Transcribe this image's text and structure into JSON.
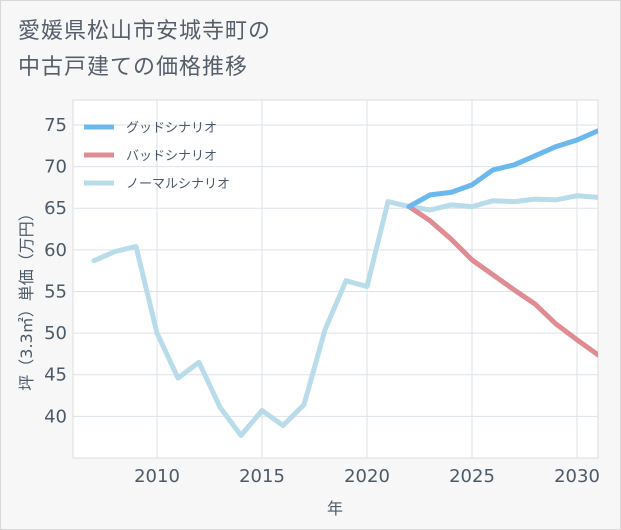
{
  "title": {
    "line1": "愛媛県松山市安城寺町の",
    "line2": "中古戸建ての価格推移"
  },
  "chart_data": {
    "type": "line",
    "xlabel": "年",
    "ylabel": "坪（3.3㎡）単価（万円）",
    "xlim": [
      2006,
      2031
    ],
    "ylim": [
      35,
      78
    ],
    "x_ticks": [
      2010,
      2015,
      2020,
      2025,
      2030
    ],
    "y_ticks": [
      40,
      45,
      50,
      55,
      60,
      65,
      70,
      75
    ],
    "legend_position": "top-left",
    "series": [
      {
        "name": "グッドシナリオ",
        "color": "#6bb8ef",
        "x": [
          2022,
          2023,
          2024,
          2025,
          2026,
          2027,
          2028,
          2029,
          2030,
          2031
        ],
        "values": [
          65.2,
          66.6,
          66.9,
          67.8,
          69.6,
          70.2,
          71.3,
          72.4,
          73.2,
          74.3
        ]
      },
      {
        "name": "バッドシナリオ",
        "color": "#e08c93",
        "x": [
          2022,
          2023,
          2024,
          2025,
          2026,
          2027,
          2028,
          2029,
          2030,
          2031
        ],
        "values": [
          65.2,
          63.5,
          61.3,
          58.8,
          57.0,
          55.2,
          53.5,
          51.1,
          49.2,
          47.4
        ]
      },
      {
        "name": "ノーマルシナリオ",
        "color": "#b8dcea",
        "x": [
          2007,
          2008,
          2009,
          2010,
          2011,
          2012,
          2013,
          2014,
          2015,
          2016,
          2017,
          2018,
          2019,
          2020,
          2021,
          2022,
          2023,
          2024,
          2025,
          2026,
          2027,
          2028,
          2029,
          2030,
          2031
        ],
        "values": [
          58.7,
          59.8,
          60.4,
          50.0,
          44.6,
          46.5,
          41.1,
          37.7,
          40.7,
          38.9,
          41.4,
          50.4,
          56.3,
          55.6,
          65.8,
          65.2,
          64.8,
          65.4,
          65.2,
          65.9,
          65.8,
          66.1,
          66.0,
          66.5,
          66.3
        ]
      }
    ]
  }
}
